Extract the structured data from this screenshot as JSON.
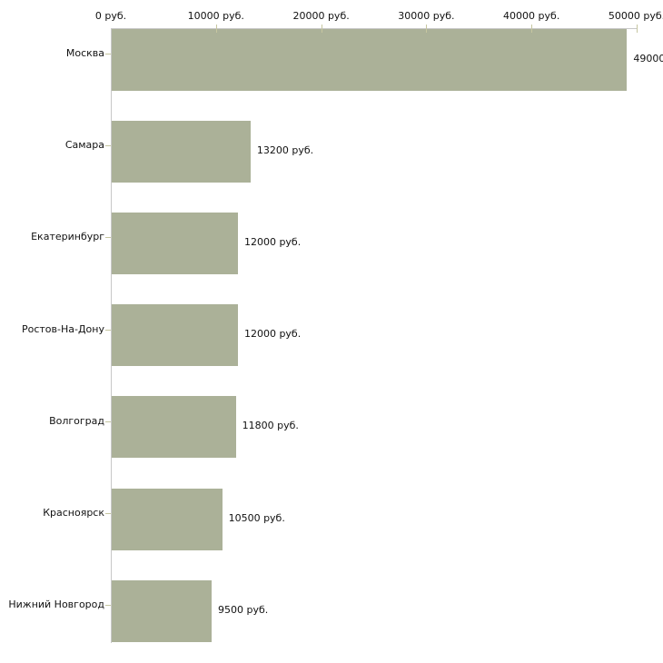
{
  "chart_data": {
    "type": "bar",
    "orientation": "horizontal",
    "title": "",
    "xlabel": "",
    "ylabel": "",
    "categories": [
      "Москва",
      "Самара",
      "Екатеринбург",
      "Ростов-На-Дону",
      "Волгоград",
      "Красноярск",
      "Нижний Новгород"
    ],
    "values": [
      49000,
      13200,
      12000,
      12000,
      11800,
      10500,
      9500
    ],
    "value_labels": [
      "49000",
      "13200 руб.",
      "12000 руб.",
      "12000 руб.",
      "11800 руб.",
      "10500 руб.",
      "9500 руб."
    ],
    "x_axis": {
      "position": "top",
      "min": 0,
      "max": 50000,
      "ticks": [
        0,
        10000,
        20000,
        30000,
        40000,
        50000
      ],
      "tick_labels": [
        "0 руб.",
        "10000 руб.",
        "20000 руб.",
        "30000 руб.",
        "40000 руб.",
        "50000 руб."
      ],
      "unit": "руб."
    },
    "grid": false,
    "legend": false,
    "colors": {
      "bar": "#abb198",
      "axis": "#c8c8c8",
      "tick": "#c6c6a0",
      "text": "#111111",
      "background": "#ffffff"
    }
  }
}
